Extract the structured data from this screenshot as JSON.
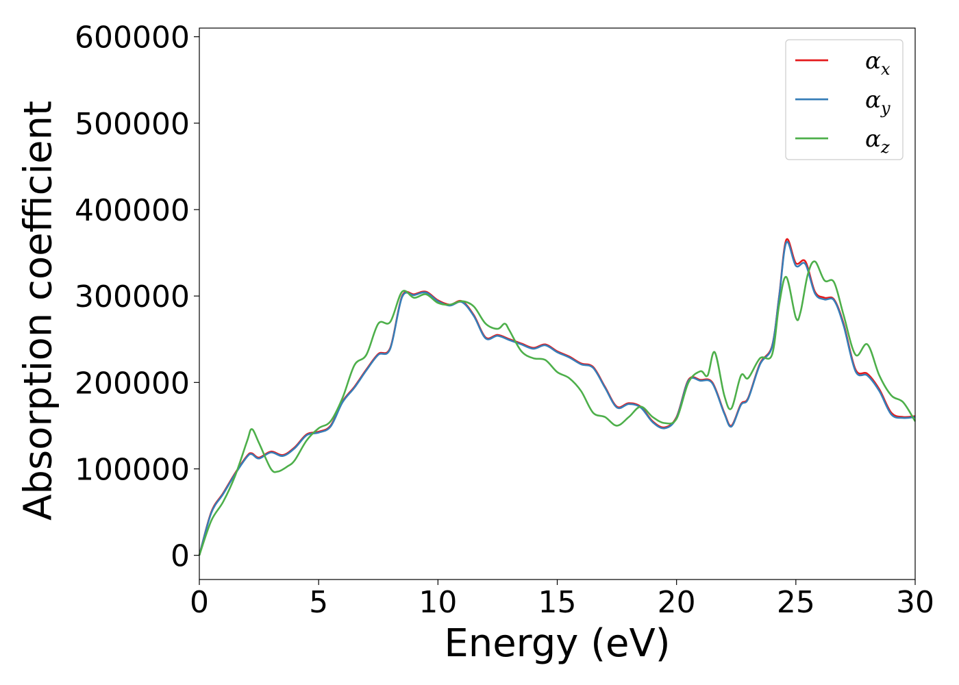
{
  "chart_data": {
    "type": "line",
    "xlabel": "Energy (eV)",
    "ylabel": "Absorption coefficient",
    "xlim": [
      0,
      30
    ],
    "ylim": [
      -28000,
      610000
    ],
    "xticks": [
      0,
      5,
      10,
      15,
      20,
      25,
      30
    ],
    "xtick_labels": [
      "0",
      "5",
      "10",
      "15",
      "20",
      "25",
      "30"
    ],
    "yticks": [
      0,
      100000,
      200000,
      300000,
      400000,
      500000,
      600000
    ],
    "ytick_labels": [
      "0",
      "100000",
      "200000",
      "300000",
      "400000",
      "500000",
      "600000"
    ],
    "grid": false,
    "legend_position": "top-right",
    "series": [
      {
        "name": "α",
        "subscript": "x",
        "color": "#e41a1c",
        "x": [
          0,
          0.5,
          1,
          1.5,
          2,
          2.2,
          2.5,
          3,
          3.5,
          4,
          4.5,
          5,
          5.5,
          6,
          6.5,
          7,
          7.5,
          8,
          8.5,
          9,
          9.5,
          10,
          10.5,
          11,
          11.5,
          12,
          12.5,
          13,
          13.5,
          14,
          14.5,
          15,
          15.5,
          16,
          16.5,
          17,
          17.5,
          18,
          18.5,
          19,
          19.5,
          20,
          20.5,
          21,
          21.5,
          22,
          22.3,
          22.7,
          23,
          23.5,
          24,
          24.3,
          24.6,
          25,
          25.4,
          25.8,
          26.2,
          26.6,
          27,
          27.5,
          28,
          28.5,
          29,
          29.5,
          30
        ],
        "values": [
          0,
          50000,
          72000,
          95000,
          115000,
          118000,
          113000,
          120000,
          116000,
          125000,
          140000,
          143000,
          150000,
          178000,
          195000,
          215000,
          233000,
          240000,
          300000,
          302000,
          305000,
          295000,
          290000,
          294000,
          278000,
          252000,
          255000,
          250000,
          245000,
          240000,
          244000,
          236000,
          230000,
          222000,
          218000,
          195000,
          172000,
          176000,
          172000,
          155000,
          148000,
          160000,
          203000,
          203000,
          200000,
          165000,
          150000,
          175000,
          182000,
          222000,
          242000,
          300000,
          365000,
          338000,
          340000,
          305000,
          298000,
          296000,
          268000,
          215000,
          210000,
          192000,
          165000,
          160000,
          161000
        ]
      },
      {
        "name": "α",
        "subscript": "y",
        "color": "#377eb8",
        "x": [
          0,
          0.5,
          1,
          1.5,
          2,
          2.2,
          2.5,
          3,
          3.5,
          4,
          4.5,
          5,
          5.5,
          6,
          6.5,
          7,
          7.5,
          8,
          8.5,
          9,
          9.5,
          10,
          10.5,
          11,
          11.5,
          12,
          12.5,
          13,
          13.5,
          14,
          14.5,
          15,
          15.5,
          16,
          16.5,
          17,
          17.5,
          18,
          18.5,
          19,
          19.5,
          20,
          20.5,
          21,
          21.5,
          22,
          22.3,
          22.7,
          23,
          23.5,
          24,
          24.3,
          24.6,
          25,
          25.4,
          25.8,
          26.2,
          26.6,
          27,
          27.5,
          28,
          28.5,
          29,
          29.5,
          30
        ],
        "values": [
          0,
          49000,
          71000,
          94000,
          114000,
          117000,
          112000,
          119000,
          115000,
          124000,
          139000,
          142000,
          149000,
          177000,
          194000,
          214000,
          232000,
          239000,
          299000,
          301000,
          304000,
          294000,
          289000,
          293000,
          277000,
          251000,
          254000,
          249000,
          244000,
          239000,
          243000,
          235000,
          229000,
          221000,
          217000,
          194000,
          171000,
          175000,
          171000,
          154000,
          147000,
          159000,
          202000,
          202000,
          199000,
          164000,
          149000,
          174000,
          181000,
          221000,
          241000,
          299000,
          362000,
          335000,
          337000,
          303000,
          296000,
          295000,
          266000,
          213000,
          208000,
          190000,
          163000,
          159000,
          160000
        ]
      },
      {
        "name": "α",
        "subscript": "z",
        "color": "#4daf4a",
        "x": [
          0,
          0.5,
          1,
          1.5,
          2,
          2.2,
          2.5,
          3,
          3.3,
          3.7,
          4,
          4.5,
          5,
          5.5,
          6,
          6.5,
          7,
          7.5,
          8,
          8.5,
          9,
          9.5,
          10,
          10.5,
          11,
          11.5,
          12,
          12.5,
          12.8,
          13,
          13.5,
          14,
          14.5,
          15,
          15.5,
          16,
          16.5,
          17,
          17.5,
          18,
          18.5,
          19,
          19.5,
          20,
          20.5,
          21,
          21.3,
          21.6,
          22,
          22.3,
          22.7,
          23,
          23.5,
          24,
          24.3,
          24.6,
          25,
          25.2,
          25.5,
          25.8,
          26.2,
          26.6,
          27,
          27.5,
          28,
          28.5,
          29,
          29.5,
          30
        ],
        "values": [
          0,
          40000,
          62000,
          92000,
          132000,
          146000,
          130000,
          100000,
          97000,
          103000,
          110000,
          133000,
          147000,
          155000,
          182000,
          220000,
          232000,
          268000,
          270000,
          305000,
          298000,
          302000,
          292000,
          290000,
          294000,
          288000,
          268000,
          262000,
          268000,
          260000,
          236000,
          228000,
          226000,
          212000,
          205000,
          190000,
          165000,
          160000,
          150000,
          160000,
          172000,
          160000,
          153000,
          158000,
          200000,
          213000,
          208000,
          235000,
          185000,
          170000,
          208000,
          205000,
          228000,
          232000,
          290000,
          322000,
          275000,
          282000,
          325000,
          340000,
          318000,
          316000,
          278000,
          232000,
          244000,
          208000,
          185000,
          177000,
          155000
        ]
      }
    ]
  }
}
